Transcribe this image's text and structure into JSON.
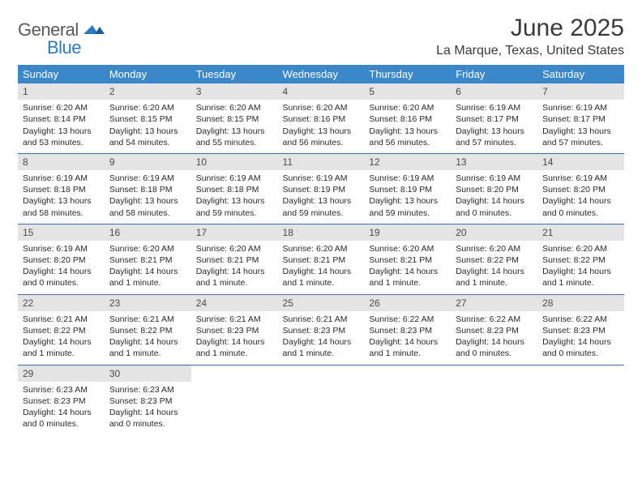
{
  "brand": {
    "general": "General",
    "blue": "Blue"
  },
  "title": "June 2025",
  "location": "La Marque, Texas, United States",
  "colors": {
    "header_bg": "#3b87c8",
    "header_fg": "#ffffff",
    "daynum_bg": "#e4e4e4",
    "row_divider": "#3b6fa5",
    "brand_blue": "#2f78c2",
    "brand_gray": "#5a5a5a"
  },
  "weekdays": [
    "Sunday",
    "Monday",
    "Tuesday",
    "Wednesday",
    "Thursday",
    "Friday",
    "Saturday"
  ],
  "weeks": [
    [
      {
        "n": "1",
        "sr": "Sunrise: 6:20 AM",
        "ss": "Sunset: 8:14 PM",
        "d1": "Daylight: 13 hours",
        "d2": "and 53 minutes."
      },
      {
        "n": "2",
        "sr": "Sunrise: 6:20 AM",
        "ss": "Sunset: 8:15 PM",
        "d1": "Daylight: 13 hours",
        "d2": "and 54 minutes."
      },
      {
        "n": "3",
        "sr": "Sunrise: 6:20 AM",
        "ss": "Sunset: 8:15 PM",
        "d1": "Daylight: 13 hours",
        "d2": "and 55 minutes."
      },
      {
        "n": "4",
        "sr": "Sunrise: 6:20 AM",
        "ss": "Sunset: 8:16 PM",
        "d1": "Daylight: 13 hours",
        "d2": "and 56 minutes."
      },
      {
        "n": "5",
        "sr": "Sunrise: 6:20 AM",
        "ss": "Sunset: 8:16 PM",
        "d1": "Daylight: 13 hours",
        "d2": "and 56 minutes."
      },
      {
        "n": "6",
        "sr": "Sunrise: 6:19 AM",
        "ss": "Sunset: 8:17 PM",
        "d1": "Daylight: 13 hours",
        "d2": "and 57 minutes."
      },
      {
        "n": "7",
        "sr": "Sunrise: 6:19 AM",
        "ss": "Sunset: 8:17 PM",
        "d1": "Daylight: 13 hours",
        "d2": "and 57 minutes."
      }
    ],
    [
      {
        "n": "8",
        "sr": "Sunrise: 6:19 AM",
        "ss": "Sunset: 8:18 PM",
        "d1": "Daylight: 13 hours",
        "d2": "and 58 minutes."
      },
      {
        "n": "9",
        "sr": "Sunrise: 6:19 AM",
        "ss": "Sunset: 8:18 PM",
        "d1": "Daylight: 13 hours",
        "d2": "and 58 minutes."
      },
      {
        "n": "10",
        "sr": "Sunrise: 6:19 AM",
        "ss": "Sunset: 8:18 PM",
        "d1": "Daylight: 13 hours",
        "d2": "and 59 minutes."
      },
      {
        "n": "11",
        "sr": "Sunrise: 6:19 AM",
        "ss": "Sunset: 8:19 PM",
        "d1": "Daylight: 13 hours",
        "d2": "and 59 minutes."
      },
      {
        "n": "12",
        "sr": "Sunrise: 6:19 AM",
        "ss": "Sunset: 8:19 PM",
        "d1": "Daylight: 13 hours",
        "d2": "and 59 minutes."
      },
      {
        "n": "13",
        "sr": "Sunrise: 6:19 AM",
        "ss": "Sunset: 8:20 PM",
        "d1": "Daylight: 14 hours",
        "d2": "and 0 minutes."
      },
      {
        "n": "14",
        "sr": "Sunrise: 6:19 AM",
        "ss": "Sunset: 8:20 PM",
        "d1": "Daylight: 14 hours",
        "d2": "and 0 minutes."
      }
    ],
    [
      {
        "n": "15",
        "sr": "Sunrise: 6:19 AM",
        "ss": "Sunset: 8:20 PM",
        "d1": "Daylight: 14 hours",
        "d2": "and 0 minutes."
      },
      {
        "n": "16",
        "sr": "Sunrise: 6:20 AM",
        "ss": "Sunset: 8:21 PM",
        "d1": "Daylight: 14 hours",
        "d2": "and 1 minute."
      },
      {
        "n": "17",
        "sr": "Sunrise: 6:20 AM",
        "ss": "Sunset: 8:21 PM",
        "d1": "Daylight: 14 hours",
        "d2": "and 1 minute."
      },
      {
        "n": "18",
        "sr": "Sunrise: 6:20 AM",
        "ss": "Sunset: 8:21 PM",
        "d1": "Daylight: 14 hours",
        "d2": "and 1 minute."
      },
      {
        "n": "19",
        "sr": "Sunrise: 6:20 AM",
        "ss": "Sunset: 8:21 PM",
        "d1": "Daylight: 14 hours",
        "d2": "and 1 minute."
      },
      {
        "n": "20",
        "sr": "Sunrise: 6:20 AM",
        "ss": "Sunset: 8:22 PM",
        "d1": "Daylight: 14 hours",
        "d2": "and 1 minute."
      },
      {
        "n": "21",
        "sr": "Sunrise: 6:20 AM",
        "ss": "Sunset: 8:22 PM",
        "d1": "Daylight: 14 hours",
        "d2": "and 1 minute."
      }
    ],
    [
      {
        "n": "22",
        "sr": "Sunrise: 6:21 AM",
        "ss": "Sunset: 8:22 PM",
        "d1": "Daylight: 14 hours",
        "d2": "and 1 minute."
      },
      {
        "n": "23",
        "sr": "Sunrise: 6:21 AM",
        "ss": "Sunset: 8:22 PM",
        "d1": "Daylight: 14 hours",
        "d2": "and 1 minute."
      },
      {
        "n": "24",
        "sr": "Sunrise: 6:21 AM",
        "ss": "Sunset: 8:23 PM",
        "d1": "Daylight: 14 hours",
        "d2": "and 1 minute."
      },
      {
        "n": "25",
        "sr": "Sunrise: 6:21 AM",
        "ss": "Sunset: 8:23 PM",
        "d1": "Daylight: 14 hours",
        "d2": "and 1 minute."
      },
      {
        "n": "26",
        "sr": "Sunrise: 6:22 AM",
        "ss": "Sunset: 8:23 PM",
        "d1": "Daylight: 14 hours",
        "d2": "and 1 minute."
      },
      {
        "n": "27",
        "sr": "Sunrise: 6:22 AM",
        "ss": "Sunset: 8:23 PM",
        "d1": "Daylight: 14 hours",
        "d2": "and 0 minutes."
      },
      {
        "n": "28",
        "sr": "Sunrise: 6:22 AM",
        "ss": "Sunset: 8:23 PM",
        "d1": "Daylight: 14 hours",
        "d2": "and 0 minutes."
      }
    ],
    [
      {
        "n": "29",
        "sr": "Sunrise: 6:23 AM",
        "ss": "Sunset: 8:23 PM",
        "d1": "Daylight: 14 hours",
        "d2": "and 0 minutes."
      },
      {
        "n": "30",
        "sr": "Sunrise: 6:23 AM",
        "ss": "Sunset: 8:23 PM",
        "d1": "Daylight: 14 hours",
        "d2": "and 0 minutes."
      },
      null,
      null,
      null,
      null,
      null
    ]
  ]
}
